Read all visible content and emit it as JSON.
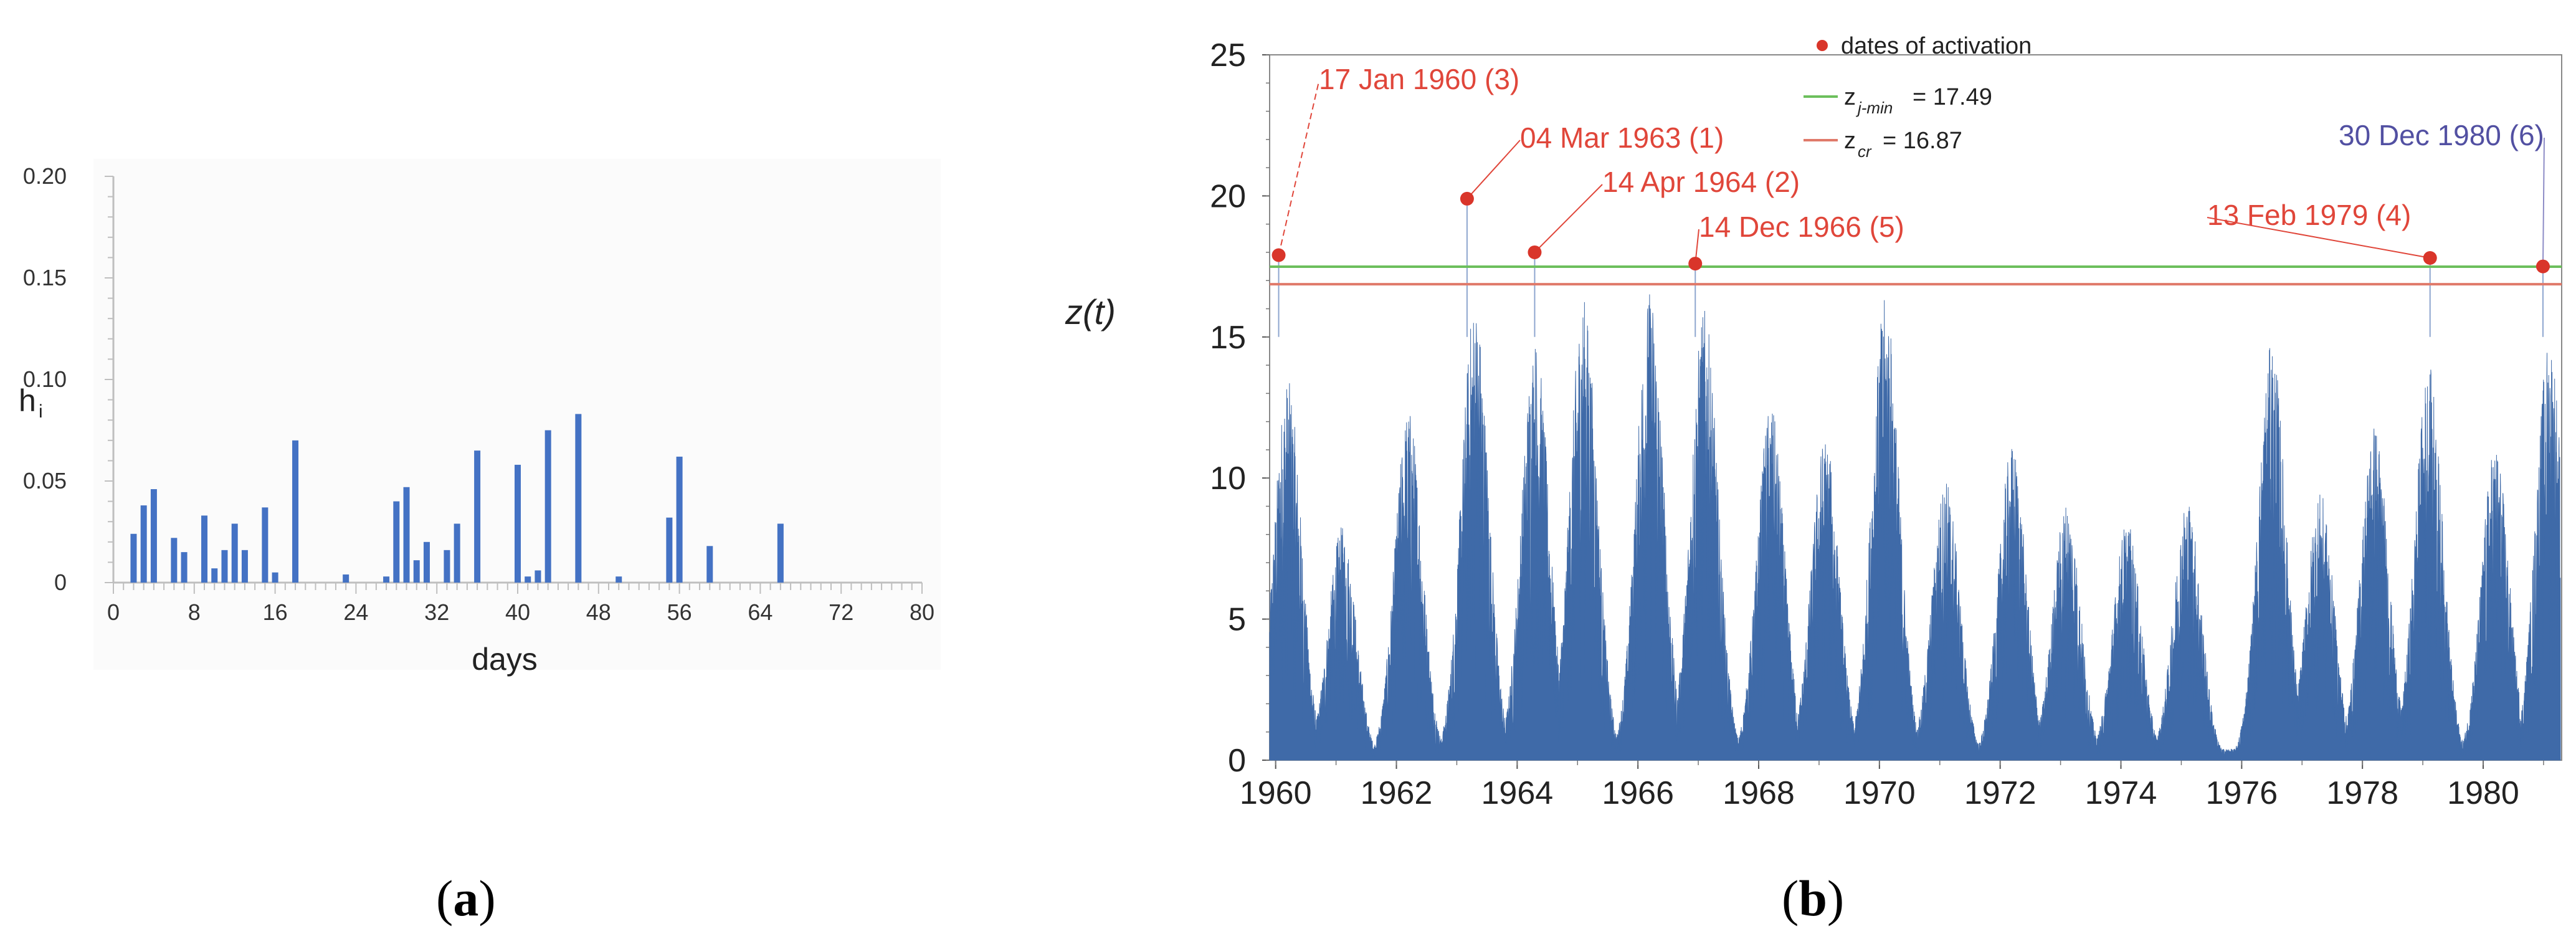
{
  "colors": {
    "bar": "#4472c4",
    "series": "#3f6aa8",
    "red": "#d9352a",
    "red_label": "#e0463a",
    "purple": "#5250a2",
    "green_line": "#6cbf5c",
    "red_line": "#e07a6a",
    "axis": "#bfbfbf"
  },
  "panel_a": {
    "label": "a",
    "chart_data": {
      "type": "bar",
      "xlabel": "days",
      "ylabel": "h",
      "ylabel_sub": "i",
      "xlim": [
        0,
        80
      ],
      "ylim": [
        0,
        0.2
      ],
      "xticks": [
        "0",
        "8",
        "16",
        "24",
        "32",
        "40",
        "48",
        "56",
        "64",
        "72",
        "80"
      ],
      "yticks": [
        "0",
        "0.05",
        "0.10",
        "0.15",
        "0.20"
      ],
      "x": [
        2,
        3,
        4,
        6,
        7,
        9,
        10,
        11,
        12,
        13,
        15,
        16,
        18,
        23,
        27,
        28,
        29,
        30,
        31,
        33,
        34,
        36,
        40,
        41,
        42,
        43,
        46,
        50,
        55,
        56,
        59,
        66
      ],
      "values": [
        0.024,
        0.038,
        0.046,
        0.022,
        0.015,
        0.033,
        0.007,
        0.016,
        0.029,
        0.016,
        0.037,
        0.005,
        0.07,
        0.004,
        0.003,
        0.04,
        0.047,
        0.011,
        0.02,
        0.016,
        0.029,
        0.065,
        0.058,
        0.003,
        0.006,
        0.075,
        0.083,
        0.003,
        0.032,
        0.062,
        0.018,
        0.029
      ]
    }
  },
  "panel_b": {
    "label": "b",
    "chart_data": {
      "type": "area",
      "ylabel": "z(t)",
      "xlim": [
        1959.9,
        1981.3
      ],
      "ylim": [
        0,
        25
      ],
      "xticks": [
        "1960",
        "1962",
        "1964",
        "1966",
        "1968",
        "1970",
        "1972",
        "1974",
        "1976",
        "1978",
        "1980"
      ],
      "yticks": [
        "0",
        "5",
        "10",
        "15",
        "20",
        "25"
      ],
      "series_peaks": [
        [
          1960.2,
          13.5
        ],
        [
          1961.1,
          8.3
        ],
        [
          1962.2,
          12.5
        ],
        [
          1963.3,
          16.3
        ],
        [
          1964.3,
          15.0
        ],
        [
          1965.1,
          16.4
        ],
        [
          1966.2,
          16.7
        ],
        [
          1967.1,
          16.0
        ],
        [
          1968.2,
          12.6
        ],
        [
          1969.1,
          11.5
        ],
        [
          1970.1,
          16.4
        ],
        [
          1971.1,
          10.0
        ],
        [
          1972.2,
          11.2
        ],
        [
          1973.1,
          9.2
        ],
        [
          1974.1,
          8.5
        ],
        [
          1975.1,
          9.3
        ],
        [
          1976.5,
          14.8
        ],
        [
          1977.3,
          9.5
        ],
        [
          1978.2,
          12.0
        ],
        [
          1979.1,
          14.0
        ],
        [
          1980.2,
          11.2
        ],
        [
          1981.1,
          15.0
        ]
      ],
      "activation_points": [
        {
          "x": 1960.05,
          "y": 17.9,
          "label": "17 Jan 1960 (3)"
        },
        {
          "x": 1963.17,
          "y": 19.9,
          "label": "04 Mar 1963 (1)"
        },
        {
          "x": 1964.29,
          "y": 18.0,
          "label": "14 Apr 1964 (2)"
        },
        {
          "x": 1966.95,
          "y": 17.6,
          "label": "14 Dec 1966 (5)"
        },
        {
          "x": 1979.12,
          "y": 17.8,
          "label": "13 Feb 1979 (4)"
        },
        {
          "x": 1980.99,
          "y": 17.5,
          "label": "30 Dec 1980 (6)"
        }
      ],
      "hlines": [
        {
          "y": 17.49,
          "name": "z",
          "sub": "j-min",
          "value": "= 17.49"
        },
        {
          "y": 16.87,
          "name": "z",
          "sub": "cr",
          "value": "= 16.87"
        }
      ],
      "legend_marker_label": "dates of activation",
      "legend_position": "top-center"
    }
  }
}
